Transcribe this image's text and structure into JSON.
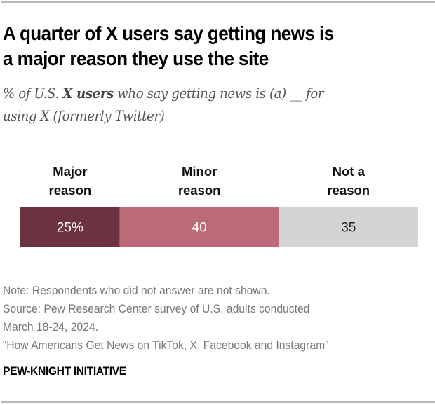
{
  "header": {
    "title_line1": "A quarter of X users say getting news is",
    "title_line2": "a major reason they use the site",
    "subtitle_part1": "% of U.S. ",
    "subtitle_bold": "X users",
    "subtitle_part2": " who say getting news is (a) __ for",
    "subtitle_line2": "using X (formerly Twitter)"
  },
  "chart_data": {
    "type": "bar",
    "orientation": "horizontal-stacked",
    "title": "A quarter of X users say getting news is a major reason they use the site",
    "subtitle": "% of U.S. X users who say getting news is (a) __ for using X (formerly Twitter)",
    "xlabel": "",
    "ylabel": "",
    "categories": [
      "X users"
    ],
    "series": [
      {
        "name": "Major reason",
        "label_lines": [
          "Major",
          "reason"
        ],
        "values": [
          25
        ],
        "display": "25%",
        "color": "#6d323f",
        "text_color": "#ffffff"
      },
      {
        "name": "Minor reason",
        "label_lines": [
          "Minor",
          "reason"
        ],
        "values": [
          40
        ],
        "display": "40",
        "color": "#bb6b78",
        "text_color": "#ffffff"
      },
      {
        "name": "Not a reason",
        "label_lines": [
          "Not a",
          "reason"
        ],
        "values": [
          35
        ],
        "display": "35",
        "color": "#d4d4d4",
        "text_color": "#222222"
      }
    ],
    "xlim": [
      0,
      100
    ],
    "grid": false,
    "legend": "top"
  },
  "footer": {
    "note": "Note: Respondents who did not answer are not shown.",
    "source_line1": "Source: Pew Research Center survey of U.S. adults conducted",
    "source_line2": "March 18-24, 2024.",
    "report": "“How Americans Get News on TikTok, X, Facebook and Instagram”",
    "brand": "PEW-KNIGHT INITIATIVE"
  }
}
